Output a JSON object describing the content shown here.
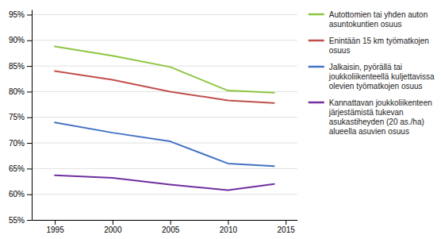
{
  "chart_data": {
    "type": "line",
    "x": [
      1995,
      2000,
      2005,
      2010,
      2014
    ],
    "series": [
      {
        "name": "Autottomien tai yhden auton\nasuntokuntien osuus",
        "color": "#8DC641",
        "values": [
          0.888,
          0.87,
          0.848,
          0.802,
          0.798
        ]
      },
      {
        "name": "Enintään 15 km työmatkojen\nosuus",
        "color": "#C0504D",
        "values": [
          0.84,
          0.823,
          0.8,
          0.783,
          0.778
        ]
      },
      {
        "name": "Jalkaisin, pyörällä tai\njoukkoliikenteellä kuljettavissa\nolevien työmatkojen osuus",
        "color": "#4472C4",
        "values": [
          0.74,
          0.72,
          0.703,
          0.66,
          0.655
        ]
      },
      {
        "name": "Kannattavan joukkoliikenteen\njärjestämistä tukevan\nasukastiheyden (20 as./ha)\nalueella asuvien osuus",
        "color": "#7030A0",
        "values": [
          0.637,
          0.632,
          0.619,
          0.608,
          0.62
        ]
      }
    ],
    "xlim": [
      1993,
      2016
    ],
    "xticks": [
      1995,
      2000,
      2005,
      2010,
      2015
    ],
    "ylim": [
      0.55,
      0.96
    ],
    "yticks": [
      {
        "value": 0.55,
        "label": "55%"
      },
      {
        "value": 0.6,
        "label": "60%"
      },
      {
        "value": 0.65,
        "label": "65%"
      },
      {
        "value": 0.7,
        "label": "70%"
      },
      {
        "value": 0.75,
        "label": "75%"
      },
      {
        "value": 0.8,
        "label": "80%"
      },
      {
        "value": 0.85,
        "label": "85%"
      },
      {
        "value": 0.9,
        "label": "90%"
      },
      {
        "value": 0.95,
        "label": "95%"
      }
    ],
    "grid": true,
    "legend": "right"
  }
}
